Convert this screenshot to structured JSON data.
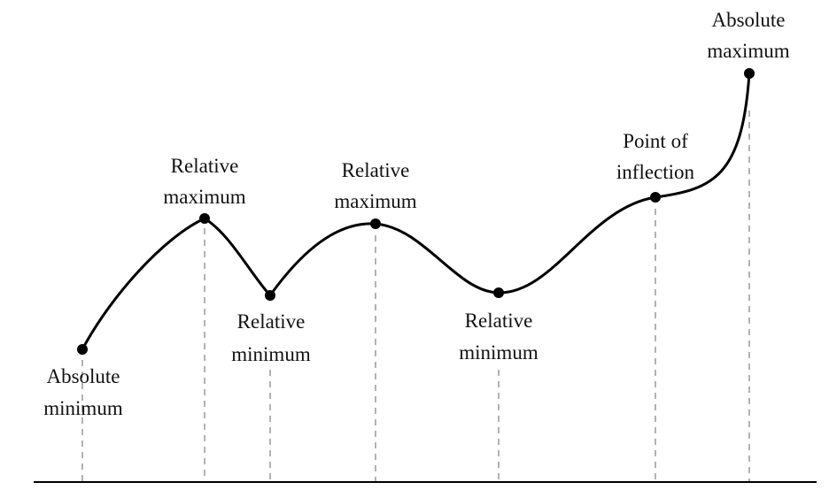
{
  "diagram": {
    "points": [
      {
        "id": "absolute-minimum-left",
        "line1": "Absolute",
        "line2": "minimum"
      },
      {
        "id": "relative-maximum-1",
        "line1": "Relative",
        "line2": "maximum"
      },
      {
        "id": "relative-minimum-1",
        "line1": "Relative",
        "line2": "minimum"
      },
      {
        "id": "relative-maximum-2",
        "line1": "Relative",
        "line2": "maximum"
      },
      {
        "id": "relative-minimum-2",
        "line1": "Relative",
        "line2": "minimum"
      },
      {
        "id": "point-of-inflection",
        "line1": "Point of",
        "line2": "inflection"
      },
      {
        "id": "absolute-maximum-right",
        "line1": "Absolute",
        "line2": "maximum"
      }
    ]
  }
}
